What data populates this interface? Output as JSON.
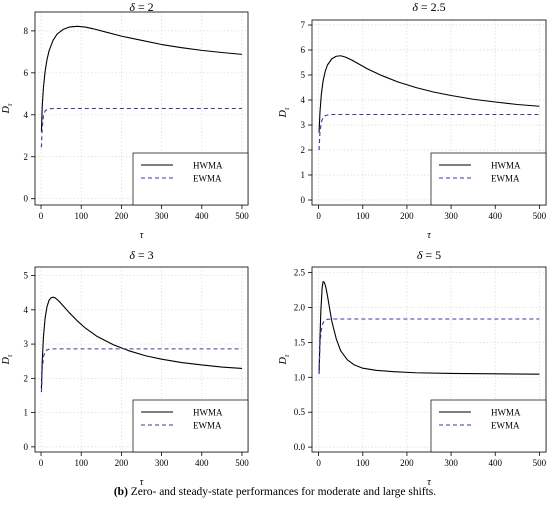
{
  "caption": {
    "tag": "(b)",
    "text": " Zero- and steady-state performances for moderate and large shifts."
  },
  "colors": {
    "hwma": "#000000",
    "ewma": "#3a3aa8",
    "grid": "#d9d9d9",
    "axis": "#000000"
  },
  "chart_data": [
    {
      "type": "line",
      "title_symbol": "δ",
      "title_value": "2",
      "xlabel": "τ",
      "ylabel_main": "D",
      "ylabel_sub": "τ",
      "xlim": [
        -15,
        515
      ],
      "ylim": [
        -0.3,
        8.9
      ],
      "xticks": [
        0,
        100,
        200,
        300,
        400,
        500
      ],
      "yticks": [
        0,
        2,
        4,
        6,
        8
      ],
      "ytick_labels": [
        "0",
        "2",
        "4",
        "6",
        "8"
      ],
      "grid": true,
      "legend_position": "bottom-right",
      "series": [
        {
          "name": "HWMA",
          "style": "solid",
          "x": [
            1,
            3,
            6,
            10,
            15,
            20,
            30,
            40,
            55,
            70,
            90,
            110,
            130,
            160,
            200,
            250,
            300,
            350,
            400,
            450,
            500
          ],
          "y": [
            3.2,
            4.4,
            5.3,
            6.05,
            6.65,
            7.05,
            7.55,
            7.85,
            8.07,
            8.18,
            8.22,
            8.18,
            8.1,
            7.95,
            7.75,
            7.55,
            7.35,
            7.2,
            7.07,
            6.97,
            6.88
          ]
        },
        {
          "name": "EWMA",
          "style": "dashed",
          "x": [
            1,
            3,
            6,
            10,
            15,
            20,
            30,
            50,
            100,
            200,
            300,
            400,
            500
          ],
          "y": [
            2.45,
            3.4,
            3.95,
            4.18,
            4.25,
            4.28,
            4.3,
            4.3,
            4.3,
            4.3,
            4.3,
            4.3,
            4.3
          ]
        }
      ]
    },
    {
      "type": "line",
      "title_symbol": "δ",
      "title_value": "2.5",
      "xlabel": "τ",
      "ylabel_main": "D",
      "ylabel_sub": "τ",
      "xlim": [
        -15,
        515
      ],
      "ylim": [
        -0.2,
        7.2
      ],
      "xticks": [
        0,
        100,
        200,
        300,
        400,
        500
      ],
      "yticks": [
        0,
        1,
        2,
        3,
        4,
        5,
        6,
        7
      ],
      "ytick_labels": [
        "0",
        "1",
        "2",
        "3",
        "4",
        "5",
        "6",
        "7"
      ],
      "grid": true,
      "legend_position": "bottom-right",
      "series": [
        {
          "name": "HWMA",
          "style": "solid",
          "x": [
            1,
            3,
            6,
            10,
            15,
            20,
            30,
            40,
            50,
            60,
            75,
            90,
            110,
            140,
            180,
            220,
            260,
            300,
            350,
            400,
            450,
            500
          ],
          "y": [
            2.7,
            3.5,
            4.2,
            4.75,
            5.15,
            5.4,
            5.65,
            5.75,
            5.77,
            5.72,
            5.6,
            5.45,
            5.25,
            5.0,
            4.72,
            4.5,
            4.32,
            4.18,
            4.03,
            3.92,
            3.82,
            3.75
          ]
        },
        {
          "name": "EWMA",
          "style": "dashed",
          "x": [
            1,
            3,
            6,
            10,
            15,
            20,
            30,
            50,
            100,
            200,
            300,
            400,
            500
          ],
          "y": [
            2.0,
            2.7,
            3.1,
            3.3,
            3.37,
            3.4,
            3.42,
            3.42,
            3.42,
            3.42,
            3.42,
            3.42,
            3.42
          ]
        }
      ]
    },
    {
      "type": "line",
      "title_symbol": "δ",
      "title_value": "3",
      "xlabel": "τ",
      "ylabel_main": "D",
      "ylabel_sub": "τ",
      "xlim": [
        -15,
        515
      ],
      "ylim": [
        -0.15,
        5.25
      ],
      "xticks": [
        0,
        100,
        200,
        300,
        400,
        500
      ],
      "yticks": [
        0,
        1,
        2,
        3,
        4,
        5
      ],
      "ytick_labels": [
        "0",
        "1",
        "2",
        "3",
        "4",
        "5"
      ],
      "grid": true,
      "legend_position": "bottom-right",
      "series": [
        {
          "name": "HWMA",
          "style": "solid",
          "x": [
            1,
            3,
            6,
            10,
            15,
            20,
            25,
            30,
            35,
            45,
            55,
            70,
            90,
            110,
            140,
            180,
            220,
            260,
            300,
            350,
            400,
            450,
            500
          ],
          "y": [
            1.7,
            2.5,
            3.2,
            3.75,
            4.1,
            4.28,
            4.35,
            4.37,
            4.35,
            4.25,
            4.12,
            3.92,
            3.68,
            3.47,
            3.22,
            2.98,
            2.8,
            2.66,
            2.56,
            2.46,
            2.39,
            2.33,
            2.29
          ]
        },
        {
          "name": "EWMA",
          "style": "dashed",
          "x": [
            1,
            3,
            6,
            10,
            15,
            20,
            30,
            50,
            100,
            200,
            300,
            400,
            500
          ],
          "y": [
            1.6,
            2.25,
            2.62,
            2.78,
            2.83,
            2.85,
            2.86,
            2.86,
            2.86,
            2.86,
            2.86,
            2.86,
            2.86
          ]
        }
      ]
    },
    {
      "type": "line",
      "title_symbol": "δ",
      "title_value": "5",
      "xlabel": "τ",
      "ylabel_main": "D",
      "ylabel_sub": "τ",
      "xlim": [
        -15,
        515
      ],
      "ylim": [
        -0.07,
        2.58
      ],
      "xticks": [
        0,
        100,
        200,
        300,
        400,
        500
      ],
      "yticks": [
        0,
        0.5,
        1,
        1.5,
        2,
        2.5
      ],
      "ytick_labels": [
        "0.0",
        "0.5",
        "1.0",
        "1.5",
        "2.0",
        "2.5"
      ],
      "grid": true,
      "legend_position": "bottom-right",
      "series": [
        {
          "name": "HWMA",
          "style": "solid",
          "x": [
            1,
            3,
            5,
            8,
            10,
            13,
            16,
            20,
            25,
            30,
            40,
            50,
            65,
            80,
            100,
            130,
            170,
            220,
            300,
            400,
            500
          ],
          "y": [
            1.05,
            1.55,
            1.95,
            2.28,
            2.37,
            2.36,
            2.3,
            2.17,
            1.98,
            1.8,
            1.55,
            1.38,
            1.25,
            1.18,
            1.13,
            1.1,
            1.08,
            1.065,
            1.055,
            1.05,
            1.045
          ]
        },
        {
          "name": "EWMA",
          "style": "dashed",
          "x": [
            1,
            3,
            6,
            10,
            15,
            20,
            30,
            50,
            100,
            200,
            300,
            400,
            500
          ],
          "y": [
            1.05,
            1.45,
            1.68,
            1.78,
            1.82,
            1.83,
            1.835,
            1.835,
            1.835,
            1.835,
            1.835,
            1.835,
            1.835
          ]
        }
      ]
    }
  ]
}
